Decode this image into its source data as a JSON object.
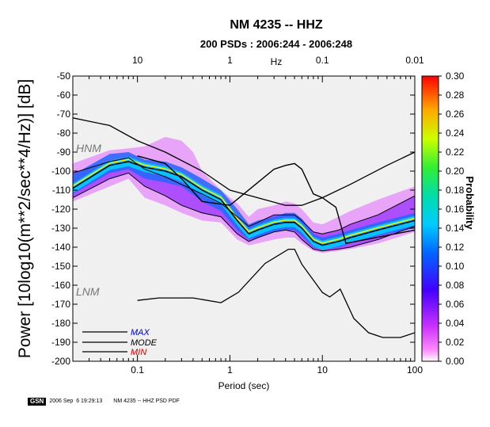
{
  "chart_data": {
    "type": "heatmap",
    "title": "NM 4235 -- HHZ",
    "subtitle": "200 PSDs : 2006:244 - 2006:248",
    "xlabel": "Period (sec)",
    "ylabel": "Power [10log10(m**2/sec**4/Hz)] [dB]",
    "top_axis_label": "Hz",
    "x_scale": "log",
    "xlim": [
      0.02,
      100
    ],
    "ylim": [
      -200,
      -50
    ],
    "x_ticks": [
      0.1,
      1,
      10,
      100
    ],
    "x_tick_labels": [
      "0.1",
      "1",
      "10",
      "100"
    ],
    "top_ticks": [
      10,
      1,
      0.1,
      0.01
    ],
    "top_tick_labels": [
      "10",
      "1",
      "0.1",
      "0.01"
    ],
    "y_ticks": [
      -50,
      -60,
      -70,
      -80,
      -90,
      -100,
      -110,
      -120,
      -130,
      -140,
      -150,
      -160,
      -170,
      -180,
      -190,
      -200
    ],
    "colorbar": {
      "label": "Probability",
      "range": [
        0,
        0.3
      ],
      "ticks": [
        "0.30",
        "0.28",
        "0.26",
        "0.24",
        "0.22",
        "0.20",
        "0.18",
        "0.16",
        "0.14",
        "0.12",
        "0.10",
        "0.08",
        "0.06",
        "0.04",
        "0.02",
        "0.00"
      ]
    },
    "model_labels": {
      "hnm": "HNM",
      "lnm": "LNM"
    },
    "legend": [
      {
        "label": "MAX",
        "color": "#0000cc"
      },
      {
        "label": "MODE",
        "color": "#000000"
      },
      {
        "label": "MIN",
        "color": "#cc0000"
      }
    ],
    "hnm": [
      [
        0.02,
        -72
      ],
      [
        0.05,
        -76
      ],
      [
        0.1,
        -84
      ],
      [
        0.2,
        -90
      ],
      [
        0.5,
        -100
      ],
      [
        1,
        -110
      ],
      [
        2,
        -114
      ],
      [
        4,
        -118
      ],
      [
        6,
        -118
      ],
      [
        10,
        -114
      ],
      [
        20,
        -107
      ],
      [
        50,
        -97
      ],
      [
        100,
        -90
      ]
    ],
    "lnm": [
      [
        0.1,
        -168
      ],
      [
        0.17,
        -166.7
      ],
      [
        0.4,
        -166.7
      ],
      [
        0.8,
        -169.2
      ],
      [
        1.24,
        -163.7
      ],
      [
        2.4,
        -148.6
      ],
      [
        4.3,
        -141.1
      ],
      [
        5,
        -141.1
      ],
      [
        6,
        -149
      ],
      [
        10,
        -163.8
      ],
      [
        12,
        -166.2
      ],
      [
        15.6,
        -162.1
      ],
      [
        21.9,
        -177.5
      ],
      [
        31.6,
        -185
      ],
      [
        45,
        -187.5
      ],
      [
        70,
        -187.5
      ],
      [
        100,
        -185
      ]
    ],
    "max_curve": [
      [
        0.02,
        -101
      ],
      [
        0.05,
        -95
      ],
      [
        0.08,
        -93
      ],
      [
        0.12,
        -99
      ],
      [
        0.2,
        -103
      ],
      [
        0.3,
        -107
      ],
      [
        0.5,
        -112
      ],
      [
        0.8,
        -117
      ],
      [
        1.2,
        -124
      ],
      [
        1.6,
        -129
      ],
      [
        2,
        -127
      ],
      [
        3,
        -123
      ],
      [
        4,
        -123
      ],
      [
        5,
        -123
      ],
      [
        6,
        -126
      ],
      [
        8,
        -132
      ],
      [
        10,
        -133
      ],
      [
        15,
        -131
      ],
      [
        20,
        -128
      ],
      [
        40,
        -123
      ],
      [
        100,
        -113
      ]
    ],
    "min_curve": [
      [
        0.02,
        -114
      ],
      [
        0.05,
        -104
      ],
      [
        0.08,
        -101
      ],
      [
        0.12,
        -108
      ],
      [
        0.2,
        -113
      ],
      [
        0.3,
        -118
      ],
      [
        0.5,
        -122
      ],
      [
        0.8,
        -124
      ],
      [
        1.2,
        -133
      ],
      [
        1.6,
        -137
      ],
      [
        2,
        -135
      ],
      [
        3,
        -132
      ],
      [
        4,
        -131
      ],
      [
        5,
        -132
      ],
      [
        6,
        -136
      ],
      [
        8,
        -141
      ],
      [
        10,
        -142
      ],
      [
        15,
        -141
      ],
      [
        20,
        -140
      ],
      [
        40,
        -136
      ],
      [
        100,
        -129
      ]
    ],
    "mode": [
      [
        0.02,
        -109
      ],
      [
        0.05,
        -97
      ],
      [
        0.08,
        -95
      ],
      [
        0.12,
        -98
      ],
      [
        0.2,
        -100
      ],
      [
        0.3,
        -103
      ],
      [
        0.5,
        -110
      ],
      [
        0.8,
        -115
      ],
      [
        1.2,
        -126
      ],
      [
        1.6,
        -133
      ],
      [
        2,
        -131
      ],
      [
        3,
        -128
      ],
      [
        4,
        -127
      ],
      [
        5,
        -127
      ],
      [
        6,
        -130
      ],
      [
        8,
        -137
      ],
      [
        10,
        -139
      ],
      [
        15,
        -137
      ],
      [
        20,
        -135
      ],
      [
        40,
        -131
      ],
      [
        100,
        -126
      ]
    ],
    "dark_line": [
      [
        0.1,
        -92
      ],
      [
        0.2,
        -96
      ],
      [
        0.3,
        -104
      ],
      [
        0.5,
        -116
      ],
      [
        1,
        -118
      ],
      [
        2,
        -106
      ],
      [
        3,
        -99
      ],
      [
        4,
        -97
      ],
      [
        5,
        -96
      ],
      [
        6,
        -99
      ],
      [
        8,
        -112
      ],
      [
        10,
        -114
      ],
      [
        14,
        -119
      ],
      [
        18,
        -138
      ],
      [
        100,
        -131
      ]
    ],
    "mode_band_upper": [
      [
        0.02,
        -102
      ],
      [
        0.05,
        -91
      ],
      [
        0.08,
        -90
      ],
      [
        0.12,
        -94
      ],
      [
        0.2,
        -95
      ],
      [
        0.3,
        -98
      ],
      [
        0.5,
        -104
      ],
      [
        0.8,
        -110
      ],
      [
        1.2,
        -120
      ],
      [
        1.6,
        -128
      ],
      [
        2,
        -126
      ],
      [
        3,
        -124
      ],
      [
        4,
        -122
      ],
      [
        5,
        -122
      ],
      [
        6,
        -125
      ],
      [
        8,
        -133
      ],
      [
        10,
        -135
      ],
      [
        15,
        -133
      ],
      [
        20,
        -131
      ],
      [
        40,
        -127
      ],
      [
        100,
        -122
      ]
    ],
    "mode_band_lower": [
      [
        0.02,
        -112
      ],
      [
        0.05,
        -101
      ],
      [
        0.08,
        -99
      ],
      [
        0.12,
        -104
      ],
      [
        0.2,
        -106
      ],
      [
        0.3,
        -108
      ],
      [
        0.5,
        -116
      ],
      [
        0.8,
        -121
      ],
      [
        1.2,
        -131
      ],
      [
        1.6,
        -136
      ],
      [
        2,
        -135
      ],
      [
        3,
        -132
      ],
      [
        4,
        -131
      ],
      [
        5,
        -131
      ],
      [
        6,
        -134
      ],
      [
        8,
        -140
      ],
      [
        10,
        -141
      ],
      [
        15,
        -140
      ],
      [
        20,
        -138
      ],
      [
        40,
        -134
      ],
      [
        100,
        -130
      ]
    ],
    "outer_band_upper": [
      [
        0.02,
        -96
      ],
      [
        0.05,
        -89
      ],
      [
        0.08,
        -88
      ],
      [
        0.12,
        -87
      ],
      [
        0.2,
        -82
      ],
      [
        0.3,
        -84
      ],
      [
        0.4,
        -90
      ],
      [
        0.5,
        -100
      ],
      [
        0.8,
        -110
      ],
      [
        1.2,
        -117
      ],
      [
        1.6,
        -124
      ],
      [
        2,
        -120
      ],
      [
        3,
        -118
      ],
      [
        4,
        -116
      ],
      [
        5,
        -117
      ],
      [
        6,
        -120
      ],
      [
        8,
        -127
      ],
      [
        10,
        -128
      ],
      [
        15,
        -124
      ],
      [
        20,
        -121
      ],
      [
        40,
        -115
      ],
      [
        100,
        -108
      ]
    ],
    "outer_band_lower": [
      [
        0.02,
        -116
      ],
      [
        0.05,
        -108
      ],
      [
        0.08,
        -104
      ],
      [
        0.12,
        -114
      ],
      [
        0.2,
        -118
      ],
      [
        0.3,
        -122
      ],
      [
        0.5,
        -126
      ],
      [
        0.8,
        -127
      ],
      [
        1.2,
        -136
      ],
      [
        1.6,
        -139
      ],
      [
        2,
        -138
      ],
      [
        3,
        -136
      ],
      [
        4,
        -135
      ],
      [
        5,
        -135
      ],
      [
        6,
        -138
      ],
      [
        8,
        -142
      ],
      [
        10,
        -143
      ],
      [
        15,
        -142
      ],
      [
        20,
        -141
      ],
      [
        40,
        -138
      ],
      [
        100,
        -132
      ]
    ]
  },
  "footer": {
    "logo": "GSN",
    "timestamp": "2006 Sep  6 19:29:13",
    "caption": "NM 4235 -- HHZ PSD PDF"
  }
}
